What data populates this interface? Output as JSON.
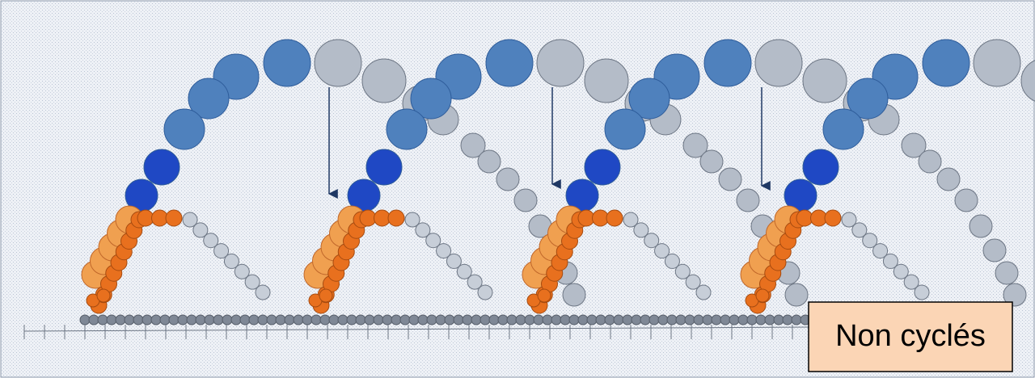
{
  "label": "Non cyclés"
}
